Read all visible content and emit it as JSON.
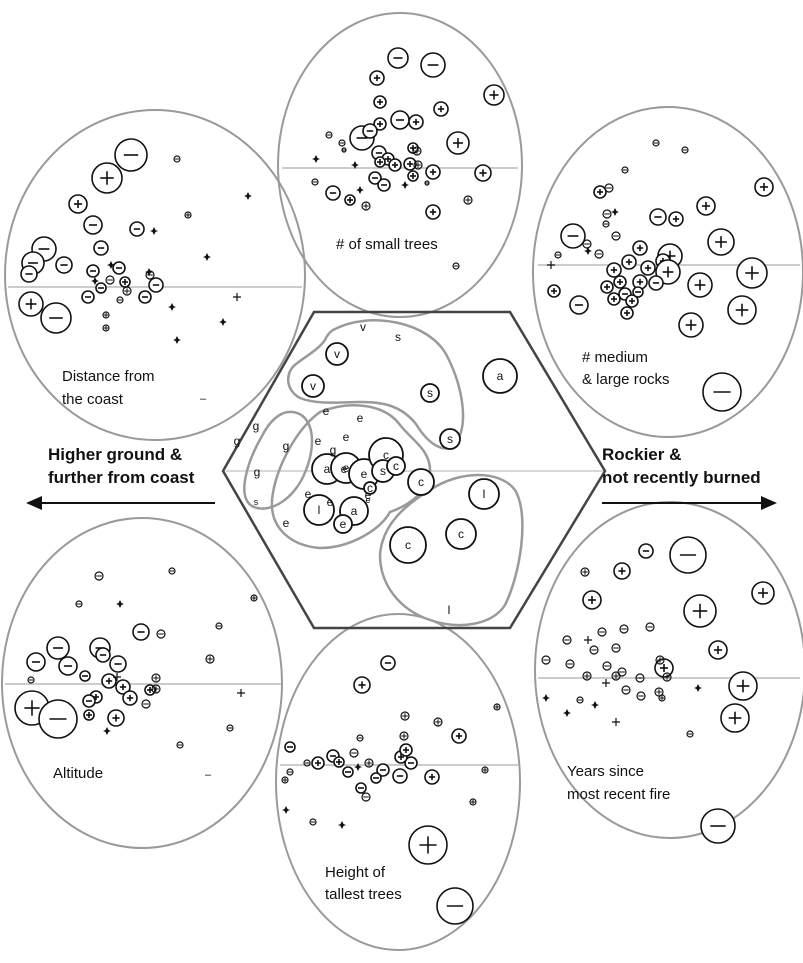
{
  "panels": {
    "distance_coast": {
      "label_lines": [
        "Distance from",
        "the coast"
      ],
      "corner_mark": "–"
    },
    "small_trees": {
      "label_lines": [
        "# of small trees"
      ]
    },
    "rocks": {
      "label_lines": [
        "# medium",
        "& large rocks"
      ]
    },
    "altitude": {
      "label_lines": [
        "Altitude"
      ],
      "corner_mark": "–"
    },
    "tallest_trees": {
      "label_lines": [
        "Height of",
        "tallest trees"
      ]
    },
    "fire": {
      "label_lines": [
        "Years since",
        "most recent fire"
      ]
    }
  },
  "axis": {
    "left_label_lines": [
      "Higher ground &",
      "further from coast"
    ],
    "right_label_lines": [
      "Rockier &",
      "not recently burned"
    ]
  },
  "site_letters": {
    "plain": [
      "v",
      "s",
      "e",
      "e",
      "g",
      "e",
      "e",
      "g",
      "g",
      "g",
      "g",
      "e",
      "e",
      "e",
      "e",
      "e",
      "l"
    ],
    "circled": [
      "v",
      "v",
      "a",
      "s",
      "s",
      "a",
      "e",
      "e",
      "c",
      "s",
      "c",
      "c",
      "l",
      "a",
      "l",
      "e",
      "c",
      "c",
      "c"
    ],
    "tiny": [
      "e",
      "s"
    ]
  },
  "colors": {
    "ink": "#111111",
    "outline": "#9a9a9a",
    "hexagon": "#444444",
    "background": "#ffffff"
  }
}
